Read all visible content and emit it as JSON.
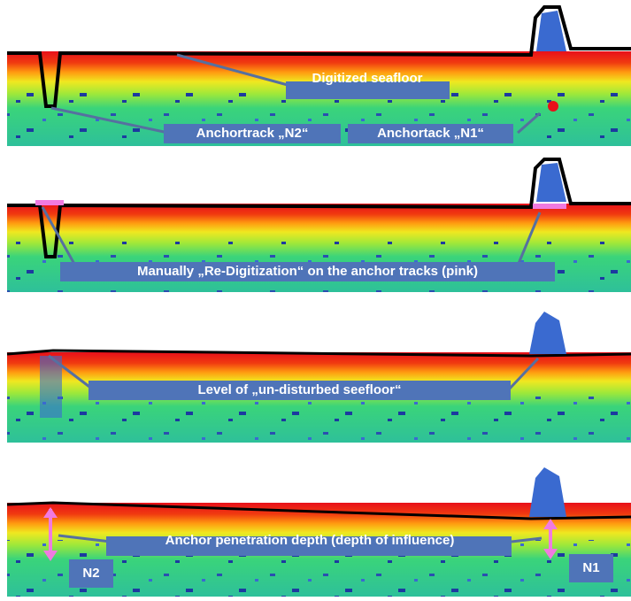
{
  "panels": [
    {
      "labels": [
        "Digitized seafloor",
        "Anchortrack „N2“",
        "Anchortack „N1“"
      ]
    },
    {
      "labels": [
        "Manually „Re-Digitization“ on the anchor tracks (pink)"
      ]
    },
    {
      "labels": [
        "Level of  „un-disturbed seefloor“"
      ]
    },
    {
      "labels": [
        "Anchor penetration depth (depth of influence)",
        "N2",
        "N1"
      ]
    }
  ]
}
